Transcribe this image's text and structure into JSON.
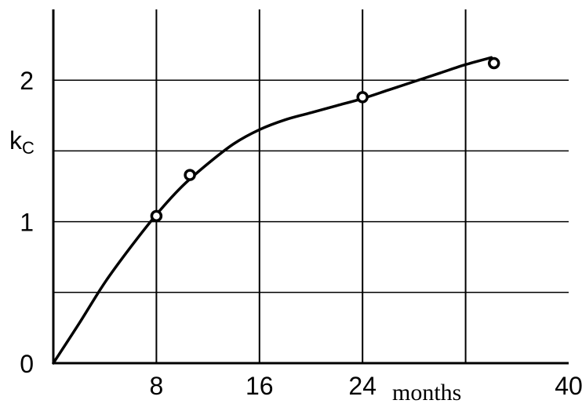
{
  "chart_data": {
    "type": "line",
    "title": "",
    "xlabel": "months",
    "ylabel": {
      "main": "k",
      "sub": "C"
    },
    "xlim": [
      0,
      40
    ],
    "ylim": [
      0,
      2.5
    ],
    "x_ticks": [
      {
        "value": 8,
        "label": "8"
      },
      {
        "value": 16,
        "label": "16"
      },
      {
        "value": 24,
        "label": "24"
      },
      {
        "value": 40,
        "label": "40"
      }
    ],
    "y_ticks": [
      {
        "value": 0,
        "label": "0"
      },
      {
        "value": 1,
        "label": "1"
      },
      {
        "value": 2,
        "label": "2"
      }
    ],
    "x_gridlines": [
      8,
      16,
      24,
      32
    ],
    "y_gridlines": [
      0.5,
      1,
      1.5,
      2
    ],
    "grid": true,
    "series": [
      {
        "curve": [
          {
            "x": 0,
            "y": 0
          },
          {
            "x": 2,
            "y": 0.28
          },
          {
            "x": 4,
            "y": 0.57
          },
          {
            "x": 6,
            "y": 0.82
          },
          {
            "x": 8,
            "y": 1.05
          },
          {
            "x": 10,
            "y": 1.25
          },
          {
            "x": 12,
            "y": 1.41
          },
          {
            "x": 14,
            "y": 1.55
          },
          {
            "x": 16,
            "y": 1.65
          },
          {
            "x": 18,
            "y": 1.72
          },
          {
            "x": 20,
            "y": 1.77
          },
          {
            "x": 22,
            "y": 1.82
          },
          {
            "x": 24,
            "y": 1.87
          },
          {
            "x": 26,
            "y": 1.93
          },
          {
            "x": 28,
            "y": 1.99
          },
          {
            "x": 30,
            "y": 2.05
          },
          {
            "x": 32,
            "y": 2.11
          },
          {
            "x": 34,
            "y": 2.16
          }
        ],
        "points": [
          {
            "x": 8,
            "y": 1.04
          },
          {
            "x": 10.6,
            "y": 1.33
          },
          {
            "x": 24,
            "y": 1.88
          },
          {
            "x": 34.2,
            "y": 2.12
          }
        ]
      }
    ]
  },
  "colors": {
    "line": "#000000",
    "grid": "#000000",
    "background": "#ffffff"
  }
}
